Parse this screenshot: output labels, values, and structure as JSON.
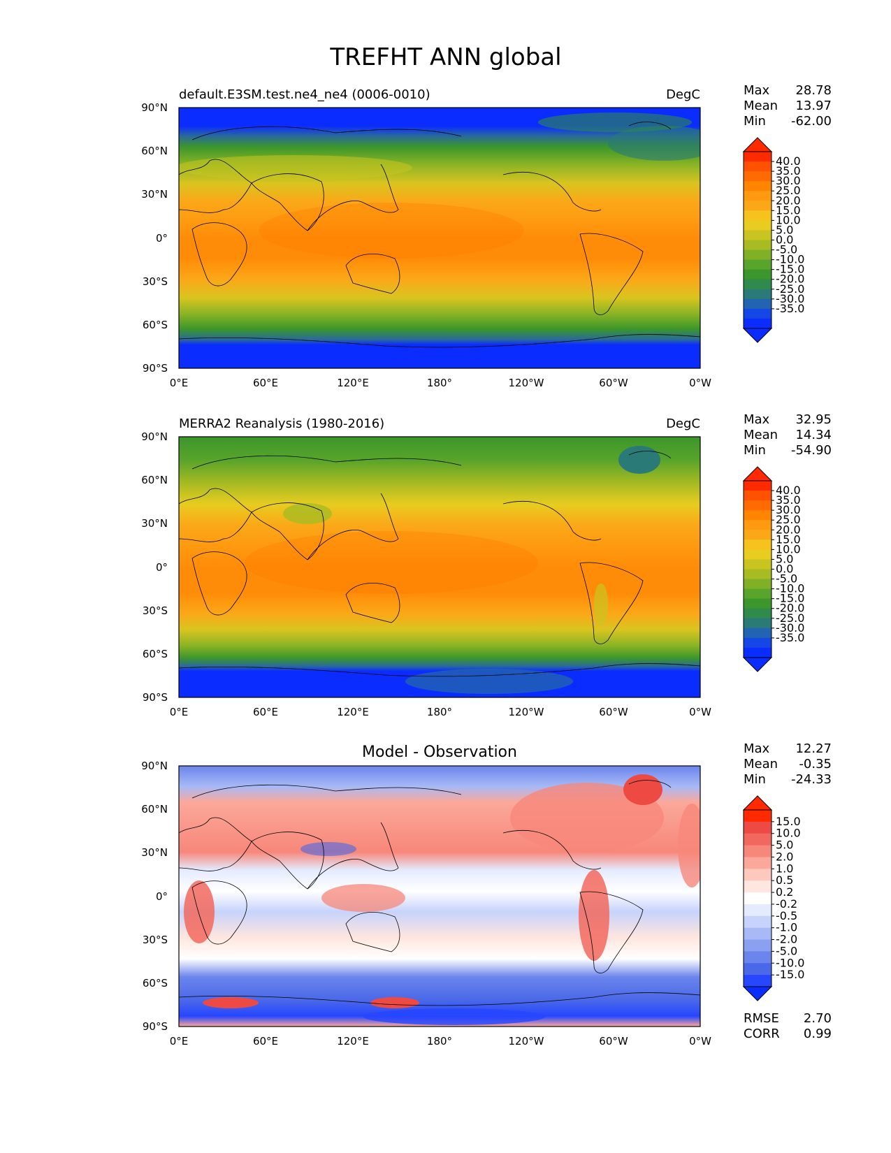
{
  "title": "TREFHT ANN global",
  "lat_ticks": [
    "90°N",
    "60°N",
    "30°N",
    "0°",
    "30°S",
    "60°S",
    "90°S"
  ],
  "lon_ticks": [
    "0°E",
    "60°E",
    "120°E",
    "180°",
    "120°W",
    "60°W",
    "0°W"
  ],
  "panels": [
    {
      "id": "test",
      "left_title": "default.E3SM.test.ne4_ne4 (0006-0010)",
      "center_title": "",
      "units": "DegC",
      "stats_labels": [
        "Max",
        "Mean",
        "Min"
      ],
      "stats_values": [
        "28.78",
        "13.97",
        "-62.00"
      ],
      "colorbar_ticks": [
        "40.0",
        "35.0",
        "30.0",
        "25.0",
        "20.0",
        "15.0",
        "10.0",
        "5.0",
        "0.0",
        "-5.0",
        "-10.0",
        "-15.0",
        "-20.0",
        "-25.0",
        "-30.0",
        "-35.0"
      ],
      "colorbar_colors": [
        "#ff2a00",
        "#ff5200",
        "#ff6b00",
        "#ff8400",
        "#ff9a10",
        "#fba818",
        "#f6c31e",
        "#e8cc20",
        "#c9c421",
        "#a8bb22",
        "#7fb026",
        "#59a42a",
        "#3b962c",
        "#2f8a4d",
        "#2a7a78",
        "#2264b2",
        "#1546e6",
        "#0a2cff"
      ],
      "extend_low_color": "#0a2cff",
      "extend_high_color": "#ff2a00",
      "extra_labels": [],
      "extra_values": []
    },
    {
      "id": "reference",
      "left_title": "MERRA2 Reanalysis (1980-2016)",
      "center_title": "",
      "units": "DegC",
      "stats_labels": [
        "Max",
        "Mean",
        "Min"
      ],
      "stats_values": [
        "32.95",
        "14.34",
        "-54.90"
      ],
      "colorbar_ticks": [
        "40.0",
        "35.0",
        "30.0",
        "25.0",
        "20.0",
        "15.0",
        "10.0",
        "5.0",
        "0.0",
        "-5.0",
        "-10.0",
        "-15.0",
        "-20.0",
        "-25.0",
        "-30.0",
        "-35.0"
      ],
      "colorbar_colors": [
        "#ff2a00",
        "#ff5200",
        "#ff6b00",
        "#ff8400",
        "#ff9a10",
        "#fba818",
        "#f6c31e",
        "#e8cc20",
        "#c9c421",
        "#a8bb22",
        "#7fb026",
        "#59a42a",
        "#3b962c",
        "#2f8a4d",
        "#2a7a78",
        "#2264b2",
        "#1546e6",
        "#0a2cff"
      ],
      "extend_low_color": "#0a2cff",
      "extend_high_color": "#ff2a00",
      "extra_labels": [],
      "extra_values": []
    },
    {
      "id": "difference",
      "left_title": "",
      "center_title": "Model - Observation",
      "units": "",
      "stats_labels": [
        "Max",
        "Mean",
        "Min"
      ],
      "stats_values": [
        "12.27",
        "-0.35",
        "-24.33"
      ],
      "colorbar_ticks": [
        "15.0",
        "10.0",
        "5.0",
        "2.0",
        "1.0",
        "0.5",
        "0.2",
        "-0.2",
        "-0.5",
        "-1.0",
        "-2.0",
        "-5.0",
        "-10.0",
        "-15.0"
      ],
      "colorbar_colors": [
        "#ff2a00",
        "#ee4a44",
        "#f2685e",
        "#f7877a",
        "#fba89a",
        "#fdc9bd",
        "#ffe6de",
        "#ffffff",
        "#e4ebff",
        "#c7d3fb",
        "#a9b9f6",
        "#8ca0f1",
        "#6b85ec",
        "#4a68e8",
        "#2646ff"
      ],
      "extend_low_color": "#0a2cff",
      "extend_high_color": "#ff2a00",
      "extra_labels": [
        "RMSE",
        "CORR"
      ],
      "extra_values": [
        "2.70",
        "0.99"
      ]
    }
  ]
}
